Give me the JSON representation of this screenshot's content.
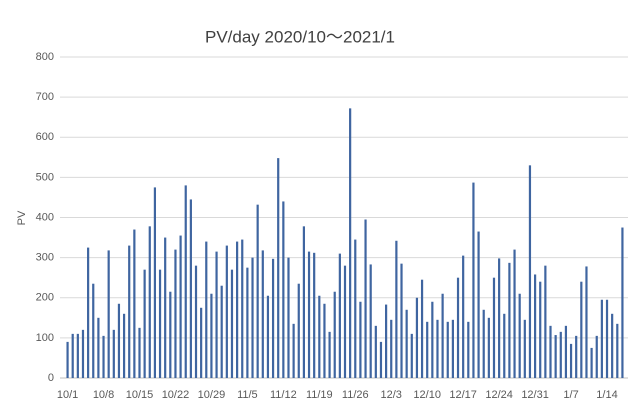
{
  "chart_data": {
    "type": "bar",
    "title": "PV/day  2020/10～2021/1",
    "y_label": "PV",
    "categories": [
      "10/1",
      null,
      null,
      null,
      null,
      null,
      null,
      "10/8",
      null,
      null,
      null,
      null,
      null,
      null,
      "10/15",
      null,
      null,
      null,
      null,
      null,
      null,
      "10/22",
      null,
      null,
      null,
      null,
      null,
      null,
      "10/29",
      null,
      null,
      null,
      null,
      null,
      null,
      "11/5",
      null,
      null,
      null,
      null,
      null,
      null,
      "11/12",
      null,
      null,
      null,
      null,
      null,
      null,
      "11/19",
      null,
      null,
      null,
      null,
      null,
      null,
      "11/26",
      null,
      null,
      null,
      null,
      null,
      null,
      "12/3",
      null,
      null,
      null,
      null,
      null,
      null,
      "12/10",
      null,
      null,
      null,
      null,
      null,
      null,
      "12/17",
      null,
      null,
      null,
      null,
      null,
      null,
      "12/24",
      null,
      null,
      null,
      null,
      null,
      null,
      "12/31",
      null,
      null,
      null,
      null,
      null,
      null,
      "1/7",
      null,
      null,
      null,
      null,
      null,
      null,
      "1/14",
      null,
      null,
      null
    ],
    "values": [
      90,
      110,
      110,
      120,
      325,
      235,
      150,
      105,
      318,
      120,
      185,
      160,
      330,
      370,
      125,
      270,
      378,
      475,
      270,
      350,
      215,
      320,
      355,
      480,
      445,
      280,
      175,
      340,
      210,
      315,
      230,
      330,
      270,
      340,
      345,
      275,
      300,
      432,
      318,
      205,
      297,
      548,
      440,
      300,
      135,
      235,
      378,
      315,
      312,
      205,
      185,
      115,
      215,
      310,
      280,
      672,
      345,
      190,
      395,
      283,
      130,
      90,
      183,
      145,
      342,
      285,
      170,
      110,
      200,
      245,
      140,
      190,
      145,
      210,
      140,
      145,
      250,
      305,
      140,
      487,
      365,
      170,
      150,
      250,
      298,
      160,
      287,
      320,
      210,
      145,
      530,
      258,
      240,
      280,
      130,
      107,
      115,
      130,
      85,
      105,
      240,
      278,
      75,
      105,
      195,
      195,
      160,
      135,
      375
    ],
    "color": "#3f65a0",
    "ylim": [
      0,
      800
    ],
    "yticks": [
      0,
      100,
      200,
      300,
      400,
      500,
      600,
      700,
      800
    ],
    "grid": true
  }
}
